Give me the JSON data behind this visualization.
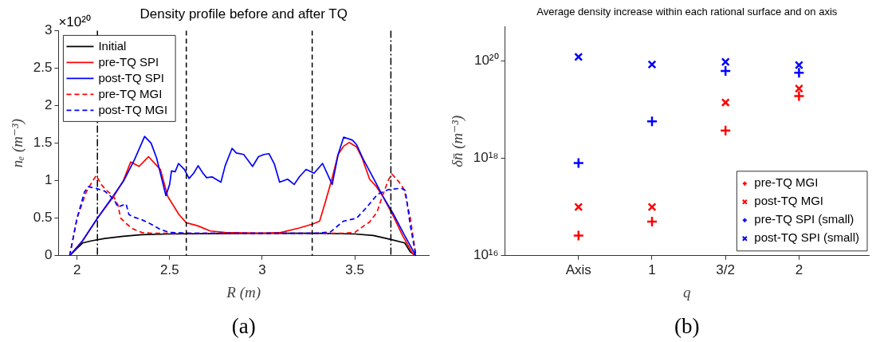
{
  "chart_data": [
    {
      "type": "line",
      "title": "Density profile before and after TQ",
      "xlabel": "R (m)",
      "ylabel": "nₑ (m⁻³)",
      "annotations": [
        "×10²⁰",
        "(a)"
      ],
      "xlim": [
        1.9,
        3.9
      ],
      "xticks": [
        2,
        2.5,
        3,
        3.5
      ],
      "ylim": [
        0,
        3
      ],
      "yticks": [
        0,
        0.5,
        1,
        1.5,
        2,
        2.5,
        3
      ],
      "grid": false,
      "legend": "top left",
      "ref_lines": [
        {
          "axis": "x",
          "value": 2.11,
          "line_style": "dashdot",
          "color": "#000000"
        },
        {
          "axis": "x",
          "value": 2.59,
          "line_style": "dashed",
          "color": "#000000"
        },
        {
          "axis": "x",
          "value": 3.27,
          "line_style": "dashed",
          "color": "#000000"
        },
        {
          "axis": "x",
          "value": 3.695,
          "line_style": "dashdot",
          "color": "#000000"
        }
      ],
      "series": [
        {
          "name": "Initial",
          "color": "#000000",
          "line_style": "solid",
          "x": [
            1.96,
            2.0,
            2.03,
            2.08,
            2.15,
            2.25,
            2.35,
            2.5,
            3.0,
            3.3,
            3.5,
            3.6,
            3.69,
            3.77,
            3.8,
            3.83
          ],
          "values": [
            0,
            0.1,
            0.17,
            0.2,
            0.23,
            0.26,
            0.28,
            0.29,
            0.3,
            0.3,
            0.29,
            0.27,
            0.22,
            0.17,
            0.05,
            0
          ]
        },
        {
          "name": "pre-TQ SPI",
          "color": "#ff0000",
          "line_style": "solid",
          "x": [
            1.96,
            2.03,
            2.11,
            2.2,
            2.25,
            2.29,
            2.335,
            2.386,
            2.45,
            2.49,
            2.55,
            2.59,
            2.65,
            2.72,
            2.8,
            3.0,
            3.1,
            3.2,
            3.27,
            3.31,
            3.338,
            3.373,
            3.41,
            3.44,
            3.47,
            3.51,
            3.54,
            3.58,
            3.617,
            3.652,
            3.71,
            3.76,
            3.82
          ],
          "values": [
            0,
            0.2,
            0.5,
            0.8,
            1.0,
            1.25,
            1.19,
            1.32,
            1.15,
            0.79,
            0.55,
            0.44,
            0.4,
            0.33,
            0.31,
            0.3,
            0.31,
            0.37,
            0.42,
            0.46,
            0.69,
            0.99,
            1.35,
            1.46,
            1.51,
            1.45,
            1.3,
            1.02,
            0.92,
            0.79,
            0.52,
            0.26,
            0
          ]
        },
        {
          "name": "post-TQ SPI",
          "color": "#0000ff",
          "line_style": "solid",
          "x": [
            1.96,
            2.03,
            2.11,
            2.193,
            2.25,
            2.31,
            2.365,
            2.4,
            2.43,
            2.46,
            2.48,
            2.5,
            2.51,
            2.53,
            2.548,
            2.58,
            2.605,
            2.63,
            2.654,
            2.68,
            2.7,
            2.73,
            2.777,
            2.8,
            2.837,
            2.86,
            2.9,
            2.948,
            2.98,
            3.01,
            3.037,
            3.066,
            3.094,
            3.137,
            3.173,
            3.2,
            3.237,
            3.28,
            3.326,
            3.378,
            3.41,
            3.44,
            3.488,
            3.51,
            3.545,
            3.61,
            3.652,
            3.71,
            3.767,
            3.83
          ],
          "values": [
            0,
            0.2,
            0.5,
            0.79,
            0.99,
            1.28,
            1.59,
            1.5,
            1.3,
            1.0,
            0.8,
            0.95,
            1.13,
            1.12,
            1.23,
            1.15,
            1.03,
            1.1,
            1.2,
            1.1,
            1.04,
            1.05,
            0.98,
            1.2,
            1.43,
            1.37,
            1.35,
            1.19,
            1.32,
            1.35,
            1.36,
            1.22,
            0.98,
            1.02,
            0.95,
            1.05,
            1.15,
            1.1,
            1.23,
            0.95,
            1.35,
            1.58,
            1.54,
            1.48,
            1.29,
            0.99,
            0.79,
            0.55,
            0.28,
            0
          ]
        },
        {
          "name": "pre-TQ MGI",
          "color": "#ff0000",
          "line_style": "dashed",
          "x": [
            1.96,
            2.0,
            2.05,
            2.08,
            2.104,
            2.13,
            2.16,
            2.195,
            2.22,
            2.236,
            2.27,
            2.3,
            2.35,
            2.4,
            3.0,
            3.45,
            3.5,
            3.55,
            3.58,
            3.62,
            3.65,
            3.68,
            3.7,
            3.74,
            3.767,
            3.8,
            3.83
          ],
          "values": [
            0,
            0.5,
            0.85,
            0.98,
            1.07,
            0.95,
            0.87,
            0.8,
            0.68,
            0.5,
            0.42,
            0.36,
            0.31,
            0.3,
            0.3,
            0.3,
            0.31,
            0.4,
            0.45,
            0.58,
            0.8,
            1.0,
            1.09,
            0.98,
            0.88,
            0.5,
            0
          ]
        },
        {
          "name": "post-TQ MGI",
          "color": "#0000ff",
          "line_style": "dashed",
          "x": [
            1.96,
            2.0,
            2.04,
            2.06,
            2.1,
            2.15,
            2.2,
            2.22,
            2.265,
            2.28,
            2.3,
            2.35,
            2.4,
            2.45,
            2.5,
            2.6,
            3.3,
            3.37,
            3.438,
            3.51,
            3.566,
            3.623,
            3.68,
            3.75,
            3.773,
            3.8,
            3.83
          ],
          "values": [
            0,
            0.5,
            0.85,
            0.92,
            0.9,
            0.86,
            0.75,
            0.65,
            0.69,
            0.55,
            0.52,
            0.48,
            0.42,
            0.35,
            0.31,
            0.3,
            0.3,
            0.32,
            0.46,
            0.5,
            0.65,
            0.82,
            0.88,
            0.9,
            0.87,
            0.4,
            0
          ]
        }
      ]
    },
    {
      "type": "scatter",
      "title": "Average density increase within each rational surface and on axis",
      "xlabel": "q",
      "ylabel": "δn̄ (m⁻³)",
      "annotations": [
        "(b)"
      ],
      "categories": [
        "Axis",
        "1",
        "3/2",
        "2"
      ],
      "log": "y",
      "ylim": [
        1e+16,
        5e+20
      ],
      "yticks": [
        {
          "value": 1e+16,
          "label": "10¹⁶"
        },
        {
          "value": 1e+18,
          "label": "10¹⁸"
        },
        {
          "value": 1e+20,
          "label": "10²⁰"
        }
      ],
      "grid": false,
      "legend": "bottom right",
      "series": [
        {
          "name": "pre-TQ MGI",
          "color": "#ff0000",
          "marker": "plus",
          "values": [
            2.6e+16,
            5e+16,
            3.7e+18,
            1.9e+19
          ]
        },
        {
          "name": "post-TQ MGI",
          "color": "#ff0000",
          "marker": "cross",
          "values": [
            1e+17,
            1e+17,
            1.4e+19,
            2.7e+19
          ]
        },
        {
          "name": "pre-TQ SPI (small)",
          "color": "#0000ff",
          "marker": "plus",
          "values": [
            8e+17,
            5.7e+18,
            6.2e+19,
            5.7e+19
          ]
        },
        {
          "name": "post-TQ SPI (small)",
          "color": "#0000ff",
          "marker": "cross",
          "values": [
            1.2e+20,
            8.4e+19,
            9.5e+19,
            8.2e+19
          ]
        }
      ]
    }
  ]
}
